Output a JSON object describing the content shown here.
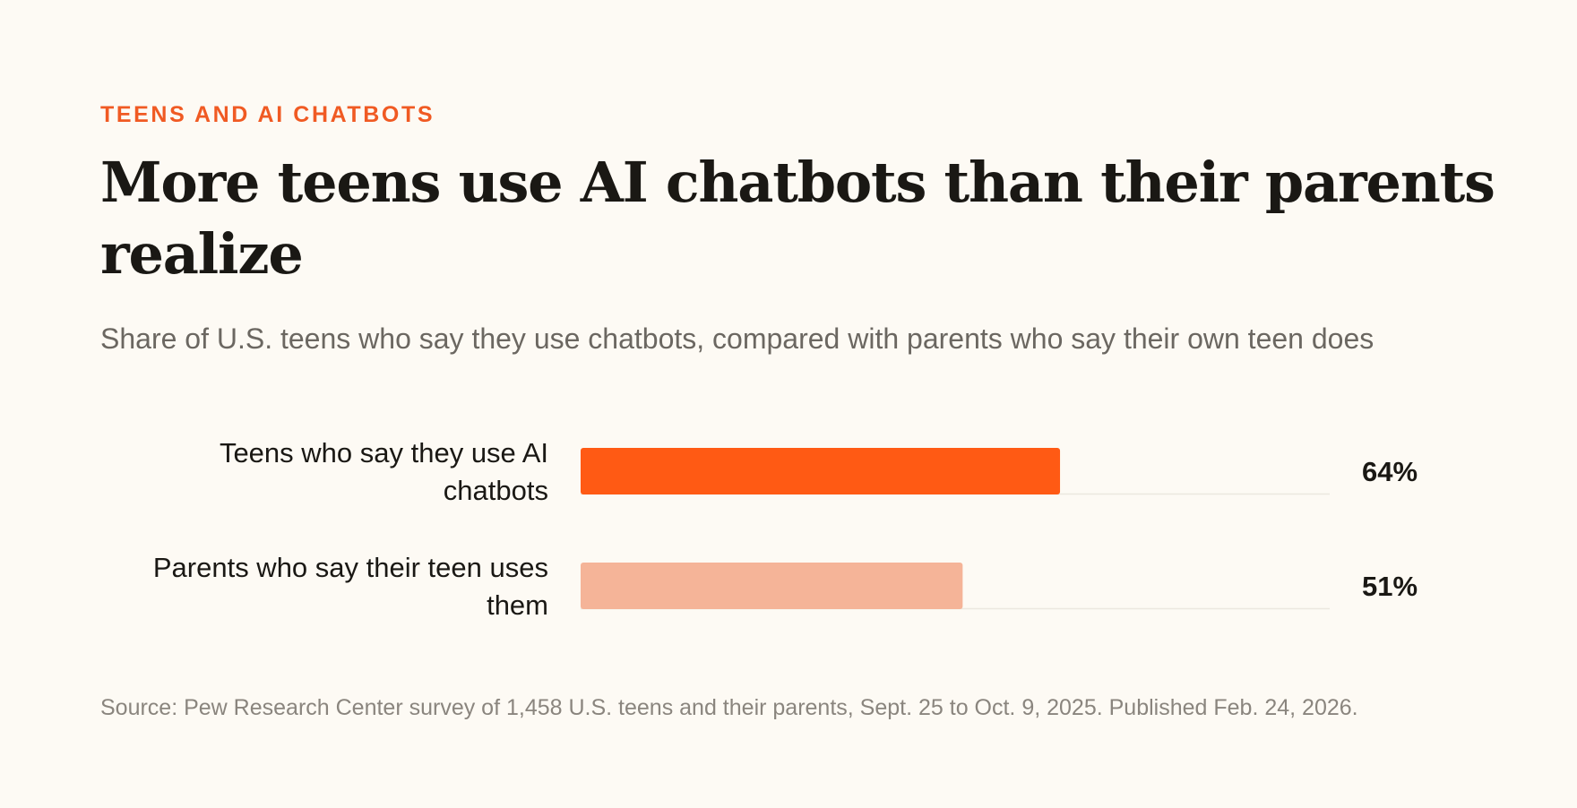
{
  "header": {
    "kicker": "TEENS AND AI CHATBOTS",
    "title": "More teens use AI chatbots than their parents realize",
    "subtitle": "Share of U.S. teens who say they use chatbots, compared with parents who say their own teen does"
  },
  "footer": {
    "source": "Source: Pew Research Center survey of 1,458 U.S. teens and their parents, Sept. 25 to Oct. 9, 2025. Published Feb. 24, 2026."
  },
  "chart_data": {
    "type": "bar",
    "orientation": "horizontal",
    "categories": [
      [
        "Teens who say they use AI",
        "chatbots"
      ],
      [
        "Parents who say their teen uses",
        "them"
      ]
    ],
    "values": [
      64,
      51
    ],
    "value_labels": [
      "64%",
      "51%"
    ],
    "colors": [
      "#ff5a14",
      "#f5b498"
    ],
    "track_color": "#ece8df",
    "xlim": [
      0,
      100
    ],
    "grid": false,
    "legend": "none"
  }
}
